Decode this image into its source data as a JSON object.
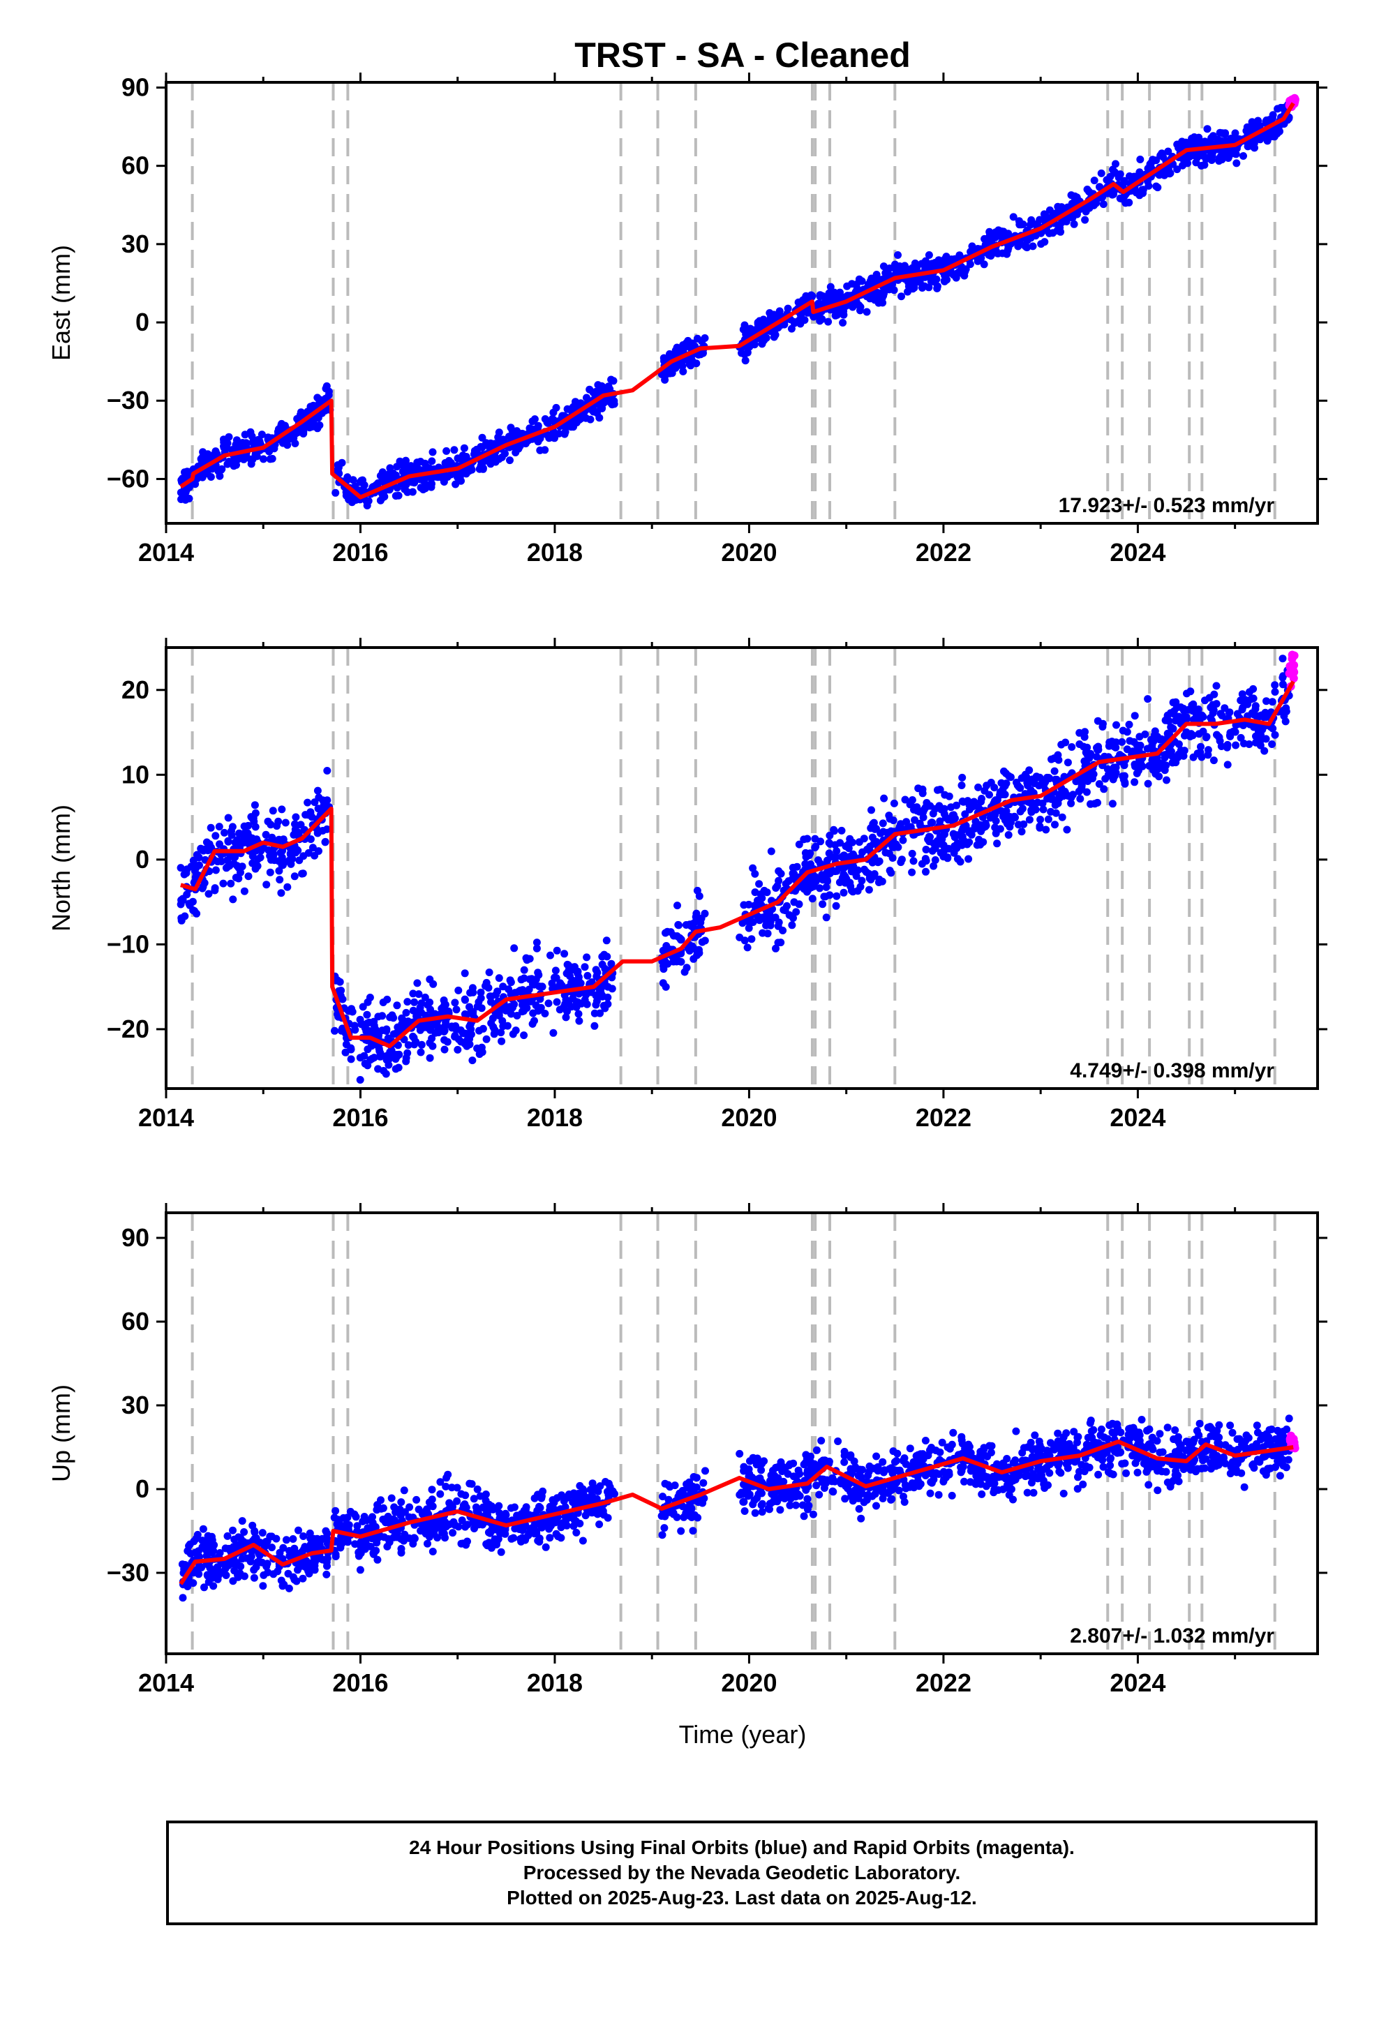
{
  "title": "TRST  - SA - Cleaned",
  "x_label": "Time (year)",
  "footer": {
    "line1": "24 Hour Positions Using Final Orbits (blue) and Rapid Orbits (magenta).",
    "line2": "Processed by the Nevada Geodetic Laboratory.",
    "line3": "Plotted on 2025-Aug-23. Last data on 2025-Aug-12."
  },
  "colors": {
    "final_orbits": "#0000ff",
    "rapid_orbits": "#ff00ff",
    "model": "#ff0000",
    "steps": "#bbbbbb"
  },
  "chart_data": [
    {
      "type": "scatter",
      "component": "east",
      "ylabel": "East (mm)",
      "xlim": [
        2014.0,
        2025.85
      ],
      "ylim": [
        -77,
        92
      ],
      "xticks": [
        2014,
        2016,
        2018,
        2020,
        2022,
        2024
      ],
      "yticks": [
        -60,
        -30,
        0,
        30,
        60,
        90
      ],
      "rate_label": "17.923+/- 0.523 mm/yr",
      "step_epochs": [
        2014.27,
        2015.72,
        2015.87,
        2018.68,
        2019.06,
        2019.45,
        2020.65,
        2020.68,
        2020.83,
        2021.5,
        2023.69,
        2023.84,
        2024.12,
        2024.53,
        2024.66,
        2025.41
      ],
      "model_curve": {
        "x": [
          2014.15,
          2014.27,
          2014.28,
          2014.6,
          2015.0,
          2015.4,
          2015.7,
          2015.71,
          2016.0,
          2016.5,
          2017.0,
          2017.5,
          2018.0,
          2018.5,
          2018.8,
          2019.2,
          2019.5,
          2019.9,
          2020.3,
          2020.65,
          2020.66,
          2021.0,
          2021.5,
          2022.0,
          2022.5,
          2023.0,
          2023.5,
          2023.75,
          2023.85,
          2024.5,
          2025.0,
          2025.5,
          2025.6
        ],
        "y": [
          -63,
          -60,
          -58,
          -51,
          -48,
          -38,
          -30,
          -58,
          -67,
          -59,
          -56,
          -47,
          -40,
          -28,
          -26,
          -15,
          -10,
          -9,
          0,
          8,
          4,
          8,
          17,
          20,
          29,
          36,
          47,
          53,
          50,
          66,
          68,
          78,
          84
        ]
      },
      "final_orbits_segments": [
        {
          "from": 2014.15,
          "to": 2015.69,
          "spread": 3
        },
        {
          "from": 2015.73,
          "to": 2018.62,
          "spread": 3
        },
        {
          "from": 2019.1,
          "to": 2019.55,
          "spread": 2.5
        },
        {
          "from": 2019.9,
          "to": 2025.56,
          "spread": 3
        }
      ],
      "rapid_orbits_range": [
        2025.56,
        2025.62
      ]
    },
    {
      "type": "scatter",
      "component": "north",
      "ylabel": "North (mm)",
      "xlim": [
        2014.0,
        2025.85
      ],
      "ylim": [
        -27,
        25
      ],
      "xticks": [
        2014,
        2016,
        2018,
        2020,
        2022,
        2024
      ],
      "yticks": [
        -20,
        -10,
        0,
        10,
        20
      ],
      "rate_label": "4.749+/- 0.398 mm/yr",
      "step_epochs": [
        2014.27,
        2015.72,
        2015.87,
        2018.68,
        2019.06,
        2019.45,
        2020.65,
        2020.68,
        2020.83,
        2021.5,
        2023.69,
        2023.84,
        2024.12,
        2024.53,
        2024.66,
        2025.41
      ],
      "model_curve": {
        "x": [
          2014.15,
          2014.3,
          2014.5,
          2014.8,
          2015.0,
          2015.2,
          2015.4,
          2015.7,
          2015.71,
          2015.9,
          2016.1,
          2016.3,
          2016.6,
          2016.9,
          2017.2,
          2017.5,
          2017.8,
          2018.1,
          2018.4,
          2018.7,
          2019.0,
          2019.3,
          2019.45,
          2019.7,
          2020.0,
          2020.3,
          2020.6,
          2020.9,
          2021.2,
          2021.5,
          2021.8,
          2022.1,
          2022.4,
          2022.7,
          2023.0,
          2023.3,
          2023.6,
          2023.9,
          2024.2,
          2024.5,
          2024.8,
          2025.1,
          2025.35,
          2025.6
        ],
        "y": [
          -3,
          -3.5,
          1,
          1,
          2,
          1.5,
          2.5,
          6,
          -15,
          -21,
          -21,
          -22,
          -19,
          -18.5,
          -19,
          -16.5,
          -16,
          -15.5,
          -15,
          -12,
          -12,
          -10.5,
          -8.5,
          -8,
          -6.5,
          -5,
          -1.5,
          -0.5,
          0,
          3,
          3.5,
          4,
          5.5,
          7,
          7.5,
          9.5,
          11.5,
          12,
          12.5,
          16,
          16,
          16.5,
          16,
          21
        ]
      },
      "final_orbits_segments": [
        {
          "from": 2014.15,
          "to": 2015.69,
          "spread": 2.2
        },
        {
          "from": 2015.73,
          "to": 2018.62,
          "spread": 2.2
        },
        {
          "from": 2019.1,
          "to": 2019.55,
          "spread": 1.8
        },
        {
          "from": 2019.9,
          "to": 2025.56,
          "spread": 2.2
        }
      ],
      "rapid_orbits_range": [
        2025.56,
        2025.62
      ]
    },
    {
      "type": "scatter",
      "component": "up",
      "ylabel": "Up (mm)",
      "xlim": [
        2014.0,
        2025.85
      ],
      "ylim": [
        -59,
        99
      ],
      "xticks": [
        2014,
        2016,
        2018,
        2020,
        2022,
        2024
      ],
      "yticks": [
        -30,
        0,
        30,
        60,
        90
      ],
      "rate_label": "2.807+/- 1.032 mm/yr",
      "step_epochs": [
        2014.27,
        2015.72,
        2015.87,
        2018.68,
        2019.06,
        2019.45,
        2020.65,
        2020.68,
        2020.83,
        2021.5,
        2023.69,
        2023.84,
        2024.12,
        2024.53,
        2024.66,
        2025.41
      ],
      "model_curve": {
        "x": [
          2014.15,
          2014.3,
          2014.6,
          2014.9,
          2015.2,
          2015.5,
          2015.7,
          2015.72,
          2016.0,
          2016.5,
          2017.0,
          2017.5,
          2018.0,
          2018.5,
          2018.8,
          2019.1,
          2019.5,
          2019.9,
          2020.2,
          2020.6,
          2020.8,
          2021.2,
          2021.7,
          2022.2,
          2022.6,
          2023.0,
          2023.4,
          2023.8,
          2024.2,
          2024.5,
          2024.7,
          2025.0,
          2025.6
        ],
        "y": [
          -34,
          -26,
          -25,
          -20,
          -27,
          -23,
          -22,
          -15,
          -17,
          -12,
          -8,
          -13,
          -9,
          -5,
          -2,
          -7,
          -2,
          4,
          0,
          2,
          8,
          1,
          6,
          11,
          6,
          10,
          12,
          17,
          11,
          10,
          16,
          12,
          15
        ]
      },
      "final_orbits_segments": [
        {
          "from": 2014.15,
          "to": 2015.69,
          "spread": 5
        },
        {
          "from": 2015.73,
          "to": 2018.62,
          "spread": 5
        },
        {
          "from": 2019.1,
          "to": 2019.55,
          "spread": 5
        },
        {
          "from": 2019.9,
          "to": 2025.56,
          "spread": 5
        }
      ],
      "rapid_orbits_range": [
        2025.56,
        2025.62
      ]
    }
  ]
}
